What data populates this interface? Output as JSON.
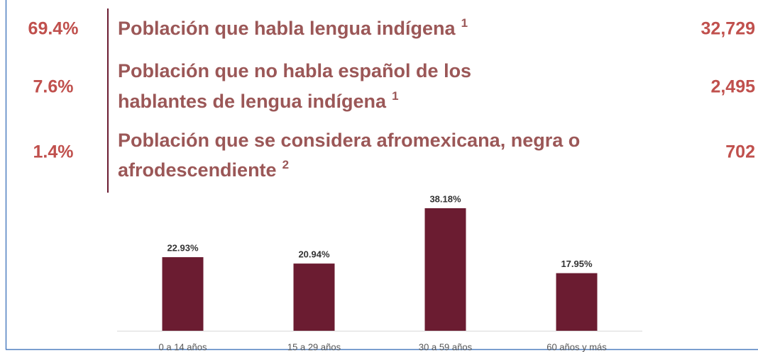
{
  "stats": [
    {
      "percent": "69.4%",
      "lines": [
        "Población que habla lengua indígena"
      ],
      "note": "1",
      "value": "32,729"
    },
    {
      "percent": "7.6%",
      "lines": [
        "Población que no habla español de los",
        "hablantes de lengua indígena"
      ],
      "note": "1",
      "value": "2,495"
    },
    {
      "percent": "1.4%",
      "lines": [
        "Población que se considera afromexicana, negra o",
        "afrodescendiente"
      ],
      "note": "2",
      "value": "702"
    }
  ],
  "chart_data": {
    "type": "bar",
    "categories": [
      "0 a 14 años",
      "15 a 29 años",
      "30 a 59 años",
      "60 años y más"
    ],
    "values": [
      22.93,
      20.94,
      38.18,
      17.95
    ],
    "value_labels": [
      "22.93%",
      "20.94%",
      "38.18%",
      "17.95%"
    ],
    "color": "#6b1c31"
  }
}
